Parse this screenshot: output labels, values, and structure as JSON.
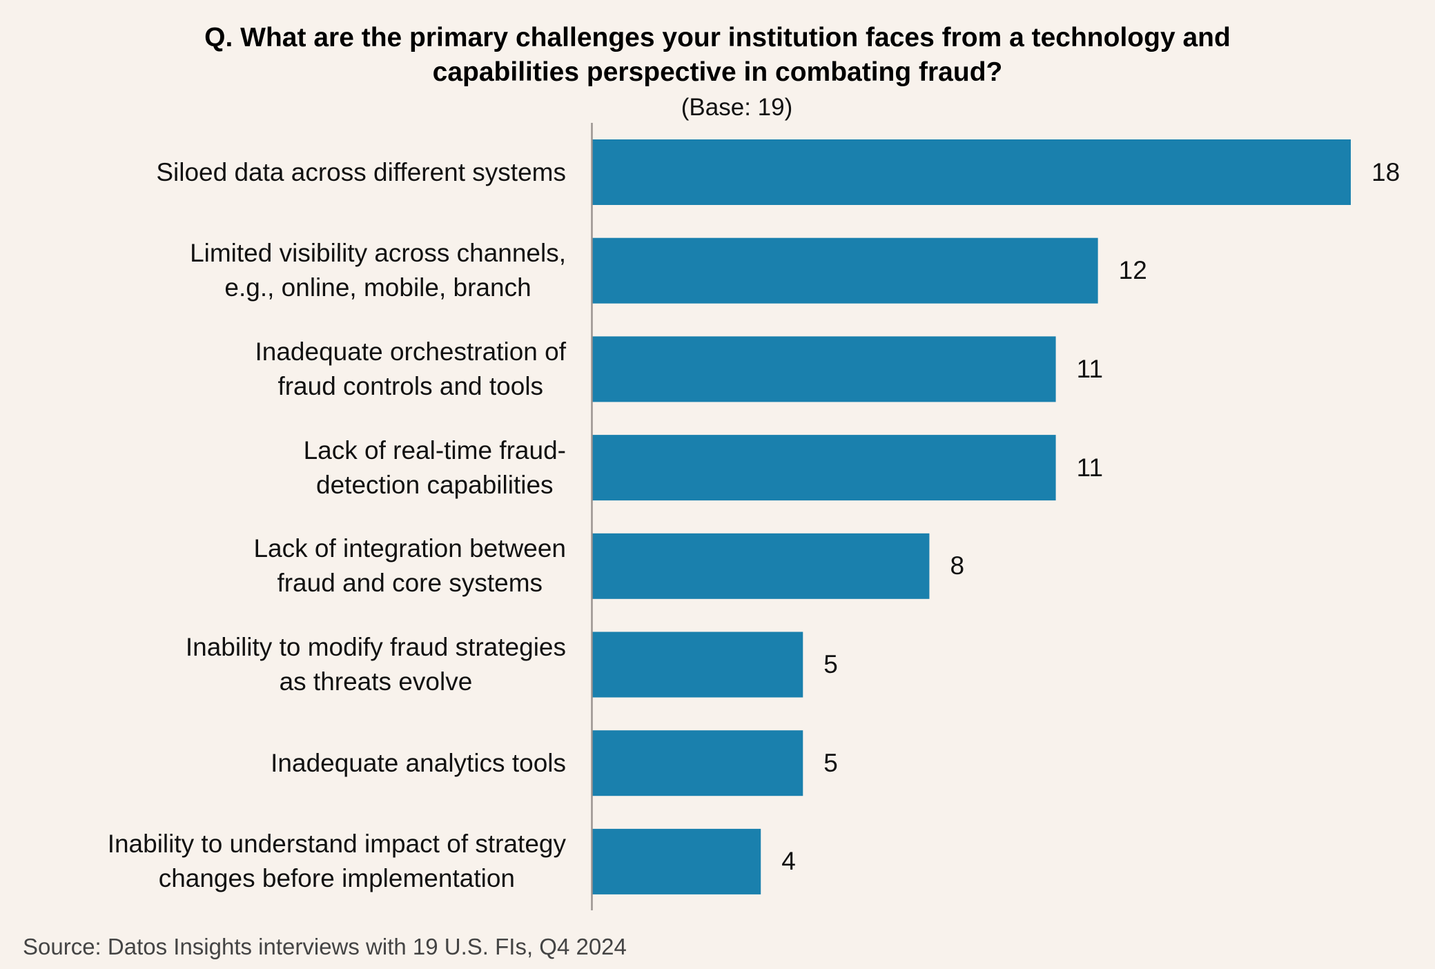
{
  "chart_data": {
    "type": "bar",
    "orientation": "horizontal",
    "title": "Q. What are the primary challenges your institution faces from a technology and capabilities perspective in combating fraud?",
    "title_lines": [
      "Q. What are the primary challenges your institution faces from a technology and",
      "capabilities perspective in combating fraud?"
    ],
    "subtitle": "(Base: 19)",
    "categories": [
      [
        "Siloed data across different systems"
      ],
      [
        "Limited visibility across channels,",
        "e.g., online, mobile, branch"
      ],
      [
        "Inadequate orchestration of",
        "fraud controls and tools"
      ],
      [
        "Lack of real-time fraud-",
        "detection capabilities"
      ],
      [
        "Lack of integration between",
        "fraud and core systems"
      ],
      [
        "Inability to modify fraud strategies",
        "as threats evolve"
      ],
      [
        "Inadequate analytics tools"
      ],
      [
        "Inability to understand impact of strategy",
        "changes before implementation"
      ]
    ],
    "values": [
      18,
      12,
      11,
      11,
      8,
      5,
      5,
      4
    ],
    "xlim": [
      0,
      18
    ],
    "grid": false,
    "legend": "none",
    "bar_color": "#1a80ad",
    "xlabel": "",
    "ylabel": ""
  },
  "source": "Source: Datos Insights interviews with 19 U.S. FIs, Q4 2024",
  "colors": {
    "background": "#f8f2ec",
    "bar": "#1a80ad",
    "axis": "#9a9390"
  }
}
